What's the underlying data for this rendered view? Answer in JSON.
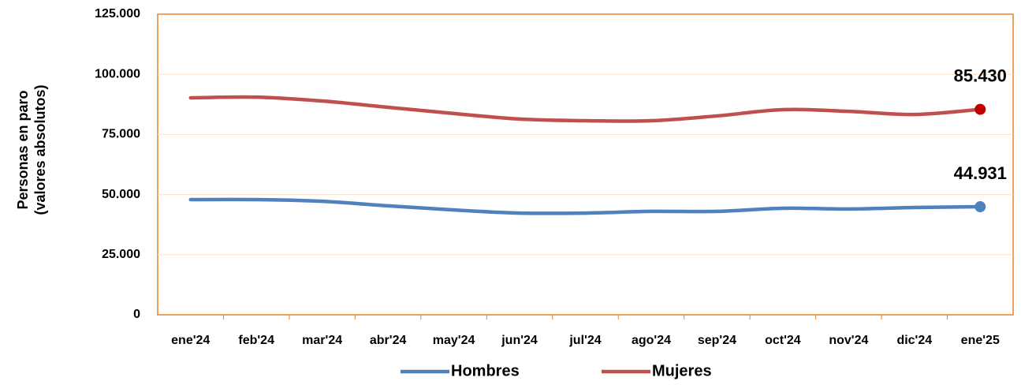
{
  "chart_data": {
    "type": "line",
    "ylabel": [
      "Personas en paro",
      "(valores absolutos)"
    ],
    "categories": [
      "ene'24",
      "feb'24",
      "mar'24",
      "abr'24",
      "may'24",
      "jun'24",
      "jul'24",
      "ago'24",
      "sep'24",
      "oct'24",
      "nov'24",
      "dic'24",
      "ene'25"
    ],
    "series": [
      {
        "name": "Hombres",
        "color": "#4f81bd",
        "marker_color": "#4f81bd",
        "values": [
          47900,
          47900,
          47200,
          45300,
          43600,
          42300,
          42300,
          43000,
          43000,
          44300,
          44000,
          44600,
          44931
        ],
        "value_labels": [
          null,
          null,
          null,
          null,
          null,
          null,
          null,
          null,
          null,
          null,
          null,
          null,
          "44.931"
        ]
      },
      {
        "name": "Mujeres",
        "color": "#c0504d",
        "marker_color": "#c00000",
        "values": [
          90200,
          90500,
          88900,
          86300,
          83700,
          81400,
          80700,
          80700,
          82700,
          85300,
          84600,
          83300,
          85430
        ],
        "value_labels": [
          null,
          null,
          null,
          null,
          null,
          null,
          null,
          null,
          null,
          null,
          null,
          null,
          "85.430"
        ]
      }
    ],
    "ylim": [
      0,
      125000
    ],
    "yticks": [
      0,
      {
        "value": 25000,
        "label": "25.000"
      },
      {
        "value": 50000,
        "label": "50.000"
      },
      {
        "value": 75000,
        "label": "75.000"
      },
      {
        "value": 100000,
        "label": "100.000"
      },
      {
        "value": 125000,
        "label": "125.000"
      }
    ],
    "grid": true,
    "legend": "bottom"
  }
}
